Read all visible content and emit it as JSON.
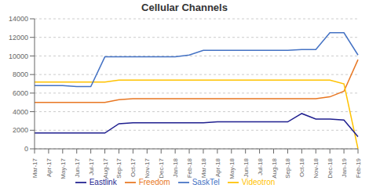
{
  "chart_data": {
    "type": "line",
    "title": "Cellular Channels",
    "categories": [
      "Mar-17",
      "Apr-17",
      "May-17",
      "Jun-17",
      "Jul-17",
      "Aug-17",
      "Sep-17",
      "Oct-17",
      "Nov-17",
      "Dec-17",
      "Jan-18",
      "Feb-18",
      "Mar-18",
      "Apr-18",
      "May-18",
      "Jun-18",
      "Jul-18",
      "Aug-18",
      "Sep-18",
      "Oct-18",
      "Nov-18",
      "Dec-18",
      "Jan-19",
      "Feb-19"
    ],
    "series": [
      {
        "name": "Freedom",
        "color": "#E87722",
        "values": [
          5000,
          5000,
          5000,
          5000,
          5000,
          5000,
          5300,
          5400,
          5400,
          5400,
          5400,
          5400,
          5400,
          5400,
          5400,
          5400,
          5400,
          5400,
          5400,
          5400,
          5400,
          5600,
          6200,
          9600
        ]
      },
      {
        "name": "Videotron",
        "color": "#FFC200",
        "values": [
          7200,
          7200,
          7200,
          7200,
          7200,
          7200,
          7400,
          7400,
          7400,
          7400,
          7400,
          7400,
          7400,
          7400,
          7400,
          7400,
          7400,
          7400,
          7400,
          7400,
          7400,
          7400,
          7000,
          0
        ]
      },
      {
        "name": "SaskTel",
        "color": "#4472C4",
        "values": [
          6800,
          6800,
          6800,
          6700,
          6700,
          9900,
          9900,
          9900,
          9900,
          9900,
          9900,
          10100,
          10600,
          10600,
          10600,
          10600,
          10600,
          10600,
          10600,
          10700,
          10700,
          12500,
          12500,
          10100
        ]
      },
      {
        "name": "Eastlink",
        "color": "#1F1F8F",
        "values": [
          1700,
          1700,
          1700,
          1700,
          1700,
          1700,
          2700,
          2800,
          2800,
          2800,
          2800,
          2800,
          2800,
          2900,
          2900,
          2900,
          2900,
          2900,
          2900,
          3800,
          3200,
          3200,
          3100,
          1300
        ]
      }
    ],
    "ylim": [
      0,
      14000
    ],
    "yticks": [
      0,
      2000,
      4000,
      6000,
      8000,
      10000,
      12000,
      14000
    ],
    "grid": true,
    "legend": "bottom"
  }
}
